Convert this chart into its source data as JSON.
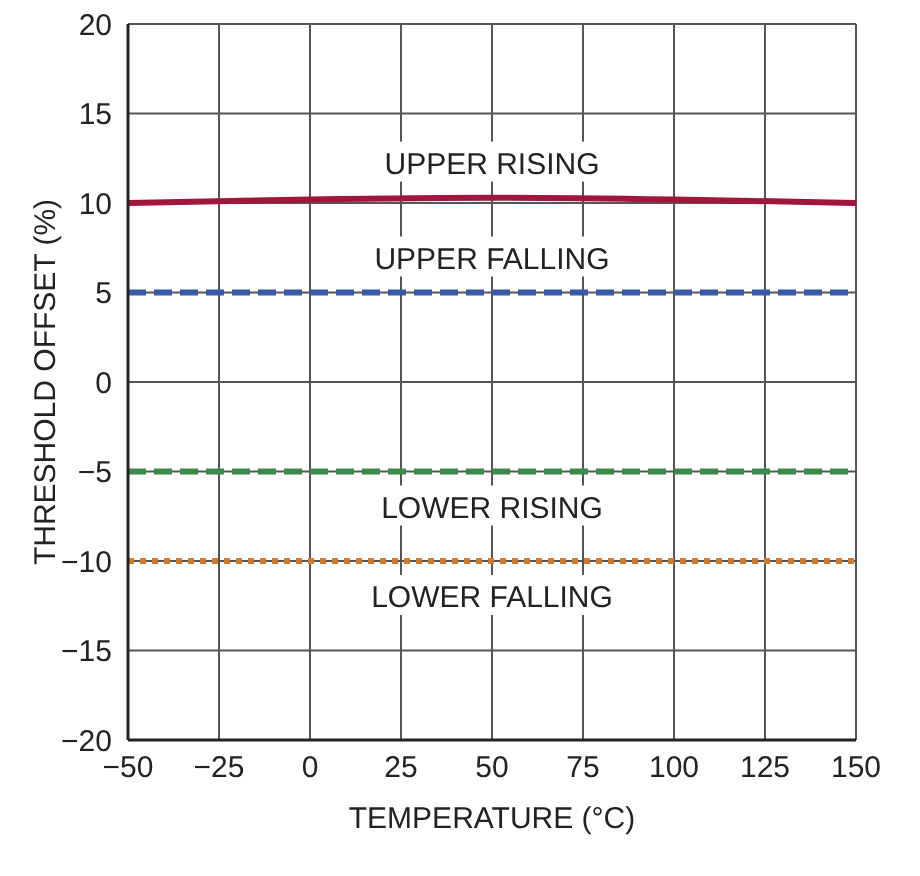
{
  "chart_data": {
    "type": "line",
    "xlabel": "TEMPERATURE (°C)",
    "ylabel": "THRESHOLD OFFSET (%)",
    "x": [
      -50,
      0,
      50,
      100,
      150
    ],
    "series": [
      {
        "name": "UPPER RISING",
        "color": "#a0163c",
        "values": [
          10,
          10.2,
          10.3,
          10.2,
          10
        ],
        "line_style": "solid"
      },
      {
        "name": "UPPER FALLING",
        "color": "#3a5aa8",
        "values": [
          5,
          5,
          5,
          5,
          5
        ],
        "line_style": "dashed"
      },
      {
        "name": "LOWER RISING",
        "color": "#3a8a4a",
        "values": [
          -5,
          -5,
          -5,
          -5,
          -5
        ],
        "line_style": "dashed"
      },
      {
        "name": "LOWER FALLING",
        "color": "#d07a2a",
        "values": [
          -10,
          -10,
          -10,
          -10,
          -10
        ],
        "line_style": "dotted"
      }
    ],
    "xlim": [
      -50,
      150
    ],
    "xticks": [
      -50,
      -25,
      0,
      25,
      50,
      75,
      100,
      125,
      150
    ],
    "ylim": [
      -20,
      20
    ],
    "yticks": [
      -20,
      -15,
      -10,
      -5,
      0,
      5,
      10,
      15,
      20
    ],
    "grid": true,
    "legend": false,
    "marker": "none"
  }
}
